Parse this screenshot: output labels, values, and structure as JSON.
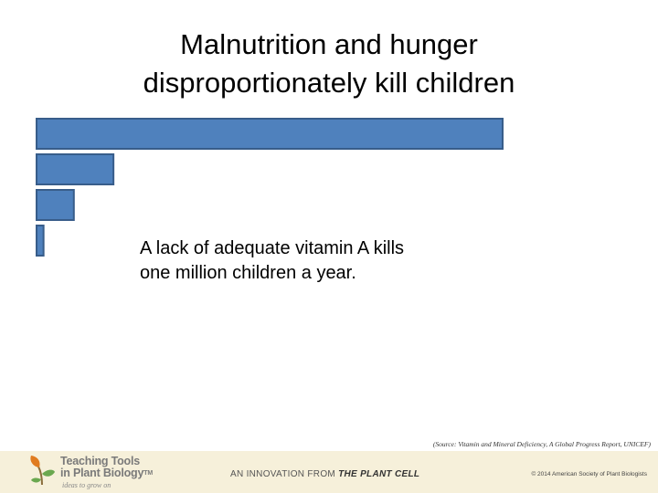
{
  "title": {
    "line1": "Malnutrition and hunger",
    "line2": "disproportionately kill children"
  },
  "chart_data": {
    "type": "bar",
    "orientation": "horizontal",
    "categories": [
      "",
      "",
      "",
      ""
    ],
    "values": [
      100,
      16.5,
      8,
      1.5
    ],
    "bar_color": "#4f81bd",
    "bar_edge_color": "#385d8a",
    "grid": false,
    "legend": "none",
    "xlim": [
      0,
      100
    ]
  },
  "fact": {
    "line1": "A lack of adequate vitamin A kills",
    "line2": "one million children a year."
  },
  "source": "(Source: Vitamin and Mineral Deficiency, A Global Progress Report, UNICEF)",
  "footer": {
    "brand_line1": "Teaching Tools",
    "brand_line2": "in Plant Biology",
    "brand_tm": "TM",
    "tagline": "ideas to grow on",
    "innovation_prefix": "AN INNOVATION FROM ",
    "innovation_journal": "THE PLANT CELL",
    "copyright": "© 2014 American Society of Plant Biologists"
  },
  "colors": {
    "bar": "#4f81bd",
    "footer_bg": "#f6f0da",
    "logo_orange": "#e07b1f",
    "logo_green": "#6aa84f"
  },
  "icons": {
    "logo": "sprout-logo-icon"
  }
}
